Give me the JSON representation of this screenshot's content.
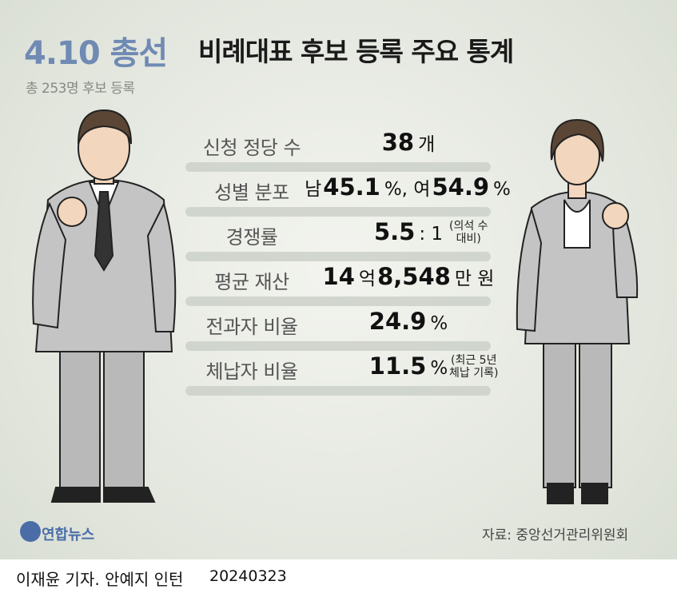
{
  "header": {
    "title_highlight": "4.10 총선",
    "title": "비례대표 후보 등록 주요 통계",
    "subtitle": "총 253명 후보 등록"
  },
  "stats": [
    {
      "label": "신청 정당 수",
      "parts": [
        {
          "text": "38",
          "bold": true
        },
        {
          "text": "개",
          "bold": false
        }
      ]
    },
    {
      "label": "성별 분포",
      "parts": [
        {
          "text": "남",
          "bold": false
        },
        {
          "text": "45.1",
          "bold": true
        },
        {
          "text": "%, 여",
          "bold": false
        },
        {
          "text": "54.9",
          "bold": true
        },
        {
          "text": "%",
          "bold": false
        }
      ]
    },
    {
      "label": "경쟁률",
      "parts": [
        {
          "text": "5.5",
          "bold": true
        },
        {
          "text": ": 1",
          "bold": false
        }
      ],
      "note": [
        "(의석 수",
        "대비)"
      ]
    },
    {
      "label": "평균 재산",
      "parts": [
        {
          "text": "14",
          "bold": true
        },
        {
          "text": "억",
          "bold": false
        },
        {
          "text": "8,548",
          "bold": true
        },
        {
          "text": "만 원",
          "bold": false
        }
      ]
    },
    {
      "label": "전과자 비율",
      "parts": [
        {
          "text": "24.9",
          "bold": true
        },
        {
          "text": "%",
          "bold": false
        }
      ]
    },
    {
      "label": "체납자 비율",
      "parts": [
        {
          "text": "11.5",
          "bold": true
        },
        {
          "text": "%",
          "bold": false
        }
      ],
      "note": [
        "(최근 5년",
        "체납 기록)"
      ]
    }
  ],
  "footer": {
    "logo": "연합뉴스",
    "source": "자료: 중앙선거관리위원회",
    "credit": "이재윤 기자. 안예지 인턴",
    "date": "20240323"
  }
}
